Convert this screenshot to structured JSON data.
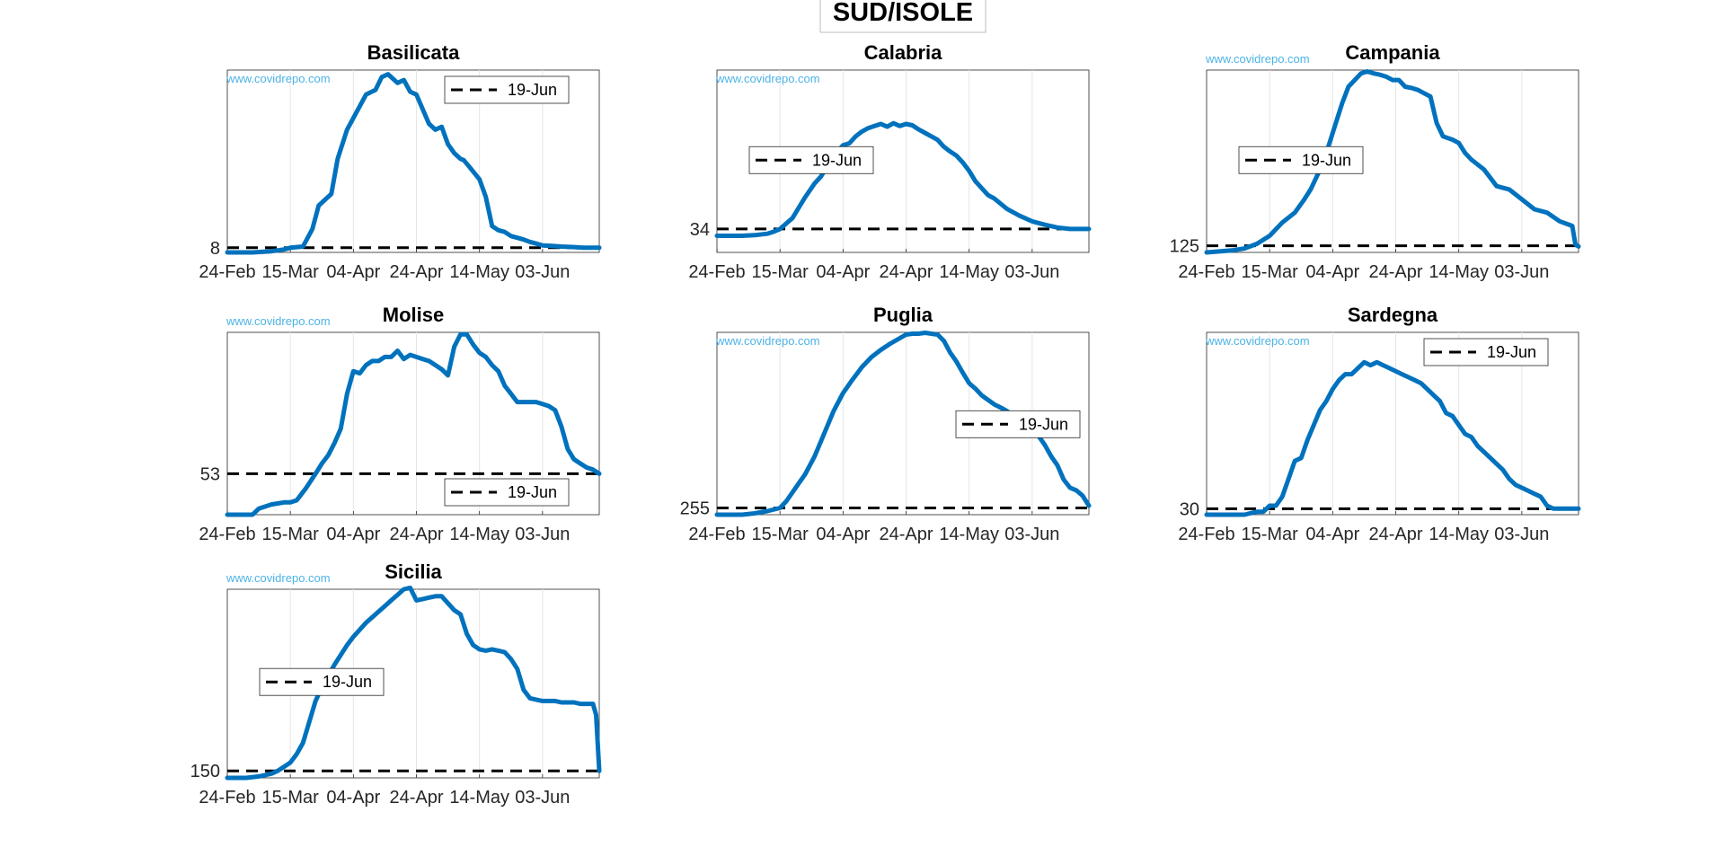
{
  "figure_title": "SUD/ISOLE",
  "watermark": "www.covidrepo.com",
  "colors": {
    "series": "#0072BD",
    "reference": "#000000",
    "watermark": "#4db3e6",
    "grid": "#e6e6e6",
    "axes": "#262626"
  },
  "chart_data": [
    {
      "type": "line",
      "title": "Basilicata",
      "x_ticks": [
        "24-Feb",
        "15-Mar",
        "04-Apr",
        "24-Apr",
        "14-May",
        "03-Jun"
      ],
      "x_range_days": [
        0,
        118
      ],
      "y_range": [
        0,
        312
      ],
      "y_tick": 8,
      "reference": {
        "label": "19-Jun",
        "value": 8
      },
      "legend_position": "top-right",
      "watermark_position": "inside-left",
      "series": [
        {
          "name": "Basilicata",
          "days": [
            0,
            8,
            14,
            18,
            20,
            24,
            27,
            29,
            33,
            35,
            38,
            40,
            42,
            44,
            47,
            49,
            51,
            54,
            56,
            58,
            60,
            62,
            64,
            66,
            68,
            70,
            72,
            74,
            75,
            77,
            80,
            82,
            84,
            86,
            88,
            90,
            92,
            94,
            96,
            98,
            100,
            103,
            106,
            110,
            113,
            116,
            117,
            118
          ],
          "values": [
            0,
            0,
            2,
            5,
            8,
            10,
            40,
            80,
            100,
            160,
            210,
            230,
            250,
            270,
            278,
            300,
            305,
            290,
            295,
            275,
            270,
            245,
            220,
            210,
            215,
            185,
            170,
            160,
            158,
            145,
            125,
            95,
            45,
            38,
            35,
            28,
            25,
            22,
            18,
            15,
            12,
            11,
            10,
            9,
            8,
            8,
            8,
            8
          ]
        }
      ]
    },
    {
      "type": "line",
      "title": "Calabria",
      "x_ticks": [
        "24-Feb",
        "15-Mar",
        "04-Apr",
        "24-Apr",
        "14-May",
        "03-Jun"
      ],
      "x_range_days": [
        0,
        118
      ],
      "y_range": [
        0,
        264
      ],
      "y_tick": 34,
      "reference": {
        "label": "19-Jun",
        "value": 34
      },
      "legend_position": "middle-left",
      "watermark_position": "inside-left",
      "series": [
        {
          "name": "Calabria",
          "days": [
            0,
            8,
            12,
            16,
            18,
            20,
            24,
            26,
            28,
            31,
            33,
            35,
            36,
            38,
            40,
            42,
            44,
            46,
            48,
            50,
            52,
            54,
            56,
            58,
            60,
            62,
            64,
            66,
            68,
            70,
            72,
            74,
            76,
            78,
            80,
            82,
            84,
            86,
            88,
            92,
            96,
            100,
            104,
            108,
            112,
            116,
            117,
            118
          ],
          "values": [
            24,
            24,
            25,
            27,
            30,
            34,
            50,
            65,
            80,
            100,
            110,
            125,
            135,
            145,
            155,
            158,
            168,
            175,
            180,
            183,
            186,
            182,
            187,
            183,
            186,
            184,
            178,
            173,
            168,
            163,
            153,
            146,
            140,
            130,
            118,
            103,
            93,
            83,
            78,
            63,
            53,
            45,
            40,
            36,
            34,
            34,
            34,
            34
          ]
        }
      ]
    },
    {
      "type": "line",
      "title": "Campania",
      "x_ticks": [
        "24-Feb",
        "15-Mar",
        "04-Apr",
        "24-Apr",
        "14-May",
        "03-Jun"
      ],
      "x_range_days": [
        0,
        118
      ],
      "y_range": [
        115,
        390
      ],
      "y_tick": 125,
      "reference": {
        "label": "19-Jun",
        "value": 125
      },
      "legend_position": "middle-left",
      "watermark_position": "above-left",
      "series": [
        {
          "name": "Campania",
          "days": [
            0,
            8,
            12,
            16,
            20,
            24,
            28,
            31,
            33,
            35,
            37,
            39,
            41,
            43,
            45,
            47,
            49,
            51,
            53,
            55,
            57,
            59,
            61,
            63,
            65,
            67,
            69,
            71,
            73,
            75,
            78,
            80,
            82,
            84,
            88,
            92,
            96,
            100,
            104,
            108,
            112,
            116,
            117,
            118
          ],
          "values": [
            115,
            118,
            121,
            128,
            140,
            160,
            175,
            195,
            210,
            230,
            250,
            280,
            310,
            340,
            365,
            375,
            385,
            388,
            385,
            383,
            380,
            375,
            375,
            365,
            363,
            360,
            355,
            350,
            310,
            290,
            285,
            280,
            265,
            255,
            240,
            215,
            210,
            195,
            180,
            175,
            162,
            155,
            127,
            124
          ]
        }
      ]
    },
    {
      "type": "line",
      "title": "Molise",
      "x_ticks": [
        "24-Feb",
        "15-Mar",
        "04-Apr",
        "24-Apr",
        "14-May",
        "03-Jun"
      ],
      "x_range_days": [
        0,
        118
      ],
      "y_range": [
        33,
        122
      ],
      "y_tick": 53,
      "reference": {
        "label": "19-Jun",
        "value": 53
      },
      "legend_position": "bottom-right",
      "watermark_position": "above-left",
      "series": [
        {
          "name": "Molise",
          "days": [
            0,
            8,
            10,
            14,
            18,
            20,
            22,
            25,
            28,
            30,
            32,
            34,
            36,
            38,
            40,
            42,
            44,
            46,
            48,
            50,
            52,
            54,
            56,
            58,
            60,
            62,
            64,
            66,
            68,
            70,
            72,
            74,
            76,
            78,
            80,
            82,
            84,
            86,
            88,
            90,
            92,
            94,
            96,
            98,
            100,
            102,
            104,
            106,
            108,
            110,
            112,
            114,
            116,
            117,
            118
          ],
          "values": [
            33,
            33,
            36,
            38,
            39,
            39,
            40,
            46,
            53,
            58,
            62,
            68,
            75,
            92,
            103,
            102,
            106,
            108,
            108,
            110,
            110,
            113,
            109,
            111,
            110,
            109,
            108,
            106,
            104,
            101,
            115,
            121,
            121,
            116,
            112,
            110,
            106,
            103,
            96,
            92,
            88,
            88,
            88,
            88,
            87,
            86,
            84,
            76,
            65,
            60,
            58,
            56,
            55,
            54,
            53
          ]
        }
      ]
    },
    {
      "type": "line",
      "title": "Puglia",
      "x_ticks": [
        "24-Feb",
        "15-Mar",
        "04-Apr",
        "24-Apr",
        "14-May",
        "03-Jun"
      ],
      "x_range_days": [
        0,
        118
      ],
      "y_range": [
        240,
        645
      ],
      "y_tick": 255,
      "reference": {
        "label": "19-Jun",
        "value": 255
      },
      "legend_position": "middle-right",
      "watermark_position": "inside-left",
      "series": [
        {
          "name": "Puglia",
          "days": [
            0,
            8,
            12,
            16,
            20,
            22,
            25,
            28,
            31,
            34,
            37,
            40,
            43,
            46,
            49,
            52,
            55,
            58,
            60,
            62,
            64,
            66,
            68,
            70,
            72,
            74,
            76,
            78,
            80,
            82,
            84,
            86,
            88,
            90,
            92,
            94,
            96,
            98,
            100,
            102,
            104,
            106,
            108,
            110,
            112,
            114,
            116,
            118
          ],
          "values": [
            240,
            240,
            243,
            248,
            255,
            270,
            300,
            330,
            370,
            420,
            470,
            510,
            540,
            568,
            590,
            606,
            620,
            632,
            640,
            642,
            642,
            644,
            642,
            640,
            626,
            600,
            580,
            555,
            532,
            520,
            505,
            495,
            485,
            478,
            470,
            460,
            446,
            440,
            425,
            415,
            395,
            370,
            350,
            318,
            300,
            294,
            282,
            260
          ]
        }
      ]
    },
    {
      "type": "line",
      "title": "Sardegna",
      "x_ticks": [
        "24-Feb",
        "15-Mar",
        "04-Apr",
        "24-Apr",
        "14-May",
        "03-Jun"
      ],
      "x_range_days": [
        0,
        118
      ],
      "y_range": [
        28,
        89
      ],
      "y_tick": 30,
      "reference": {
        "label": "19-Jun",
        "value": 30
      },
      "legend_position": "top-right",
      "watermark_position": "inside-left",
      "series": [
        {
          "name": "Sardegna",
          "days": [
            0,
            8,
            12,
            16,
            18,
            20,
            22,
            24,
            26,
            28,
            30,
            32,
            34,
            36,
            38,
            40,
            42,
            44,
            46,
            48,
            50,
            52,
            54,
            56,
            58,
            60,
            62,
            64,
            66,
            68,
            70,
            72,
            74,
            76,
            78,
            80,
            82,
            84,
            86,
            88,
            90,
            92,
            94,
            96,
            98,
            100,
            102,
            104,
            106,
            108,
            110,
            112,
            114,
            116,
            118
          ],
          "values": [
            28,
            28,
            28,
            29,
            29,
            31,
            31,
            34,
            40,
            46,
            47,
            53,
            58,
            63,
            66,
            70,
            73,
            75,
            75,
            77,
            79,
            78,
            79,
            78,
            77,
            76,
            75,
            74,
            73,
            72,
            70,
            68,
            66,
            62,
            61,
            58,
            55,
            54,
            51,
            49,
            47,
            45,
            43,
            40,
            38,
            37,
            36,
            35,
            34,
            31,
            30,
            30,
            30,
            30,
            30
          ]
        }
      ]
    },
    {
      "type": "line",
      "title": "Sicilia",
      "x_ticks": [
        "24-Feb",
        "15-Mar",
        "04-Apr",
        "24-Apr",
        "14-May",
        "03-Jun"
      ],
      "x_range_days": [
        0,
        118
      ],
      "y_range": [
        145,
        280
      ],
      "y_tick": 150,
      "reference": {
        "label": "19-Jun",
        "value": 150
      },
      "legend_position": "middle-left",
      "watermark_position": "above-left",
      "series": [
        {
          "name": "Sicilia",
          "days": [
            0,
            6,
            10,
            14,
            16,
            18,
            20,
            22,
            24,
            26,
            28,
            30,
            32,
            34,
            36,
            38,
            40,
            42,
            44,
            46,
            48,
            50,
            52,
            54,
            56,
            58,
            60,
            62,
            64,
            66,
            68,
            70,
            72,
            74,
            76,
            78,
            80,
            82,
            84,
            86,
            88,
            90,
            92,
            94,
            96,
            98,
            100,
            102,
            104,
            106,
            108,
            110,
            112,
            114,
            116,
            117,
            118
          ],
          "values": [
            145,
            145,
            146,
            148,
            150,
            153,
            156,
            162,
            170,
            185,
            200,
            210,
            218,
            226,
            233,
            240,
            246,
            251,
            256,
            260,
            264,
            268,
            272,
            276,
            280,
            281,
            272,
            273,
            274,
            275,
            275,
            270,
            265,
            262,
            248,
            240,
            237,
            236,
            237,
            236,
            235,
            230,
            223,
            208,
            202,
            201,
            200,
            200,
            200,
            199,
            199,
            199,
            198,
            198,
            198,
            190,
            150
          ]
        }
      ]
    }
  ]
}
